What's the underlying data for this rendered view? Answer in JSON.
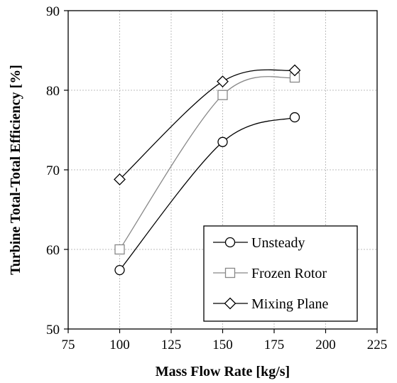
{
  "chart_data": {
    "type": "line",
    "xlabel": "Mass Flow Rate [kg/s]",
    "ylabel": "Turbine Total-Total Efficiency [%]",
    "xlim": [
      75,
      225
    ],
    "ylim": [
      50,
      90
    ],
    "xticks": [
      75,
      100,
      125,
      150,
      175,
      200,
      225
    ],
    "yticks": [
      50,
      60,
      70,
      80,
      90
    ],
    "grid": true,
    "smooth_lines": true,
    "legend_position": "bottom-right",
    "series": [
      {
        "name": "Unsteady",
        "marker": "circle",
        "color": "#000000",
        "x": [
          100,
          150,
          185
        ],
        "y": [
          57.4,
          73.5,
          76.6
        ]
      },
      {
        "name": "Frozen Rotor",
        "marker": "square",
        "color": "#888888",
        "x": [
          100,
          150,
          185
        ],
        "y": [
          60.0,
          79.4,
          81.6
        ]
      },
      {
        "name": "Mixing Plane",
        "marker": "diamond",
        "color": "#000000",
        "x": [
          100,
          150,
          185
        ],
        "y": [
          68.8,
          81.1,
          82.5
        ]
      }
    ]
  }
}
